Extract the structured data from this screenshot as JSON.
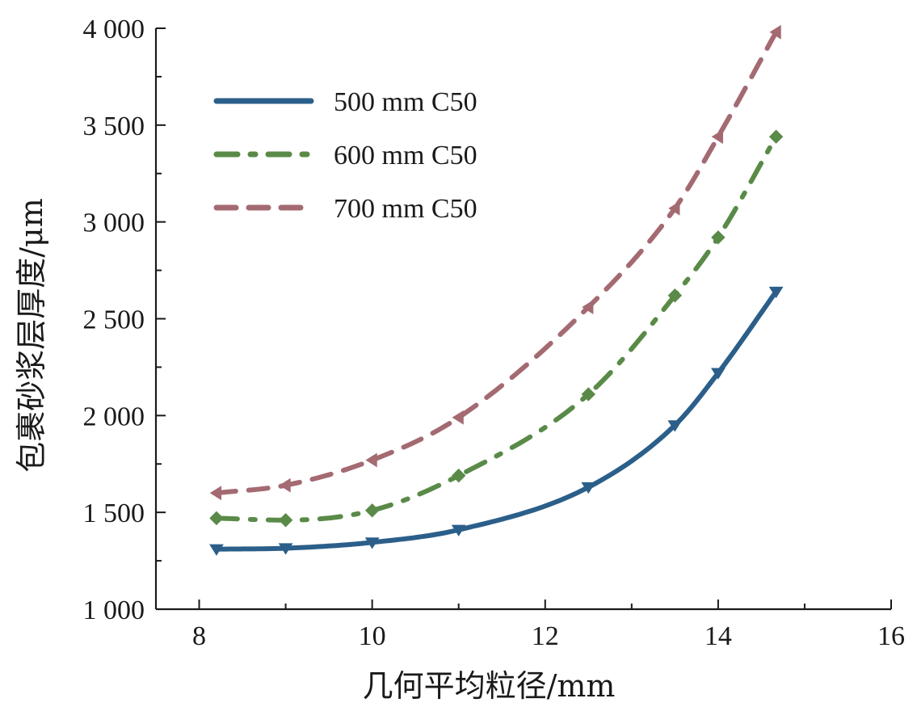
{
  "chart_data": {
    "type": "line",
    "title": "",
    "xlabel": "几何平均粒径/mm",
    "ylabel": "包裹砂浆层厚度/μm",
    "xlim": [
      7.5,
      16
    ],
    "ylim": [
      1000,
      4000
    ],
    "xticks": [
      8,
      10,
      12,
      14,
      16
    ],
    "xtick_labels": [
      "8",
      "10",
      "12",
      "14",
      "16"
    ],
    "yticks": [
      1000,
      1500,
      2000,
      2500,
      3000,
      3500,
      4000
    ],
    "ytick_labels": [
      "1 000",
      "1 500",
      "2 000",
      "2 500",
      "3 000",
      "3 500",
      "4 000"
    ],
    "grid": false,
    "legend_position": "top-left",
    "series": [
      {
        "name": "500 mm C50",
        "color": "#2b5f8a",
        "style": "solid",
        "marker": "down-triangle",
        "x": [
          8.2,
          9.0,
          10.0,
          11.0,
          12.5,
          13.5,
          14.0,
          14.67
        ],
        "y": [
          1310,
          1315,
          1345,
          1410,
          1630,
          1950,
          2220,
          2640
        ]
      },
      {
        "name": "600 mm C50",
        "color": "#5a8a48",
        "style": "dash-dot",
        "marker": "diamond",
        "x": [
          8.2,
          9.0,
          10.0,
          11.0,
          12.5,
          13.5,
          14.0,
          14.67
        ],
        "y": [
          1470,
          1460,
          1510,
          1690,
          2110,
          2620,
          2920,
          3440
        ]
      },
      {
        "name": "700 mm C50",
        "color": "#a46a72",
        "style": "dashed",
        "marker": "left-triangle",
        "x": [
          8.2,
          9.0,
          10.0,
          11.0,
          12.5,
          13.5,
          14.0,
          14.67
        ],
        "y": [
          1600,
          1640,
          1770,
          1990,
          2560,
          3070,
          3440,
          3980
        ]
      }
    ]
  }
}
